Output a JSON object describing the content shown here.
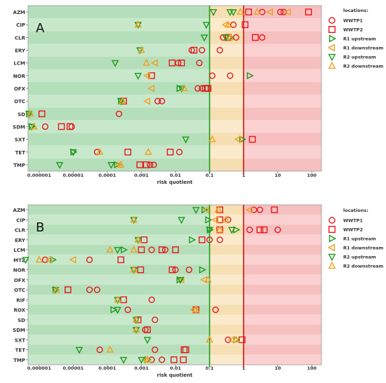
{
  "chart_data": [
    {
      "type": "scatter",
      "panel_label": "A",
      "x_scale": "log",
      "xlim": [
        2.5e-07,
        200
      ],
      "x_ticks": [
        "0.000001",
        "0.00001",
        "0.0001",
        "0.001",
        "0.01",
        "0.1",
        "1",
        "10",
        "100"
      ],
      "xlabel": "risk quotient",
      "ref_lines": [
        0.1,
        1
      ],
      "categories": [
        "AZM",
        "CIP",
        "CLR",
        "ERY",
        "LCM",
        "NOR",
        "OFX",
        "OTC",
        "SD",
        "SDM",
        "SXT",
        "TET",
        "TMP"
      ],
      "series": [
        {
          "name": "WWTP1",
          "points": [
            [
              "AZM",
              3.5
            ],
            [
              "AZM",
              12
            ],
            [
              "AZM",
              15
            ],
            [
              "CIP",
              0.5
            ],
            [
              "CLR",
              0.25
            ],
            [
              "CLR",
              0.6
            ],
            [
              "CLR",
              3.5
            ],
            [
              "ERY",
              0.03
            ],
            [
              "ERY",
              0.06
            ],
            [
              "ERY",
              0.2
            ],
            [
              "LCM",
              0.012
            ],
            [
              "LCM",
              0.05
            ],
            [
              "NOR",
              0.12
            ],
            [
              "NOR",
              0.4
            ],
            [
              "OFX",
              0.045
            ],
            [
              "OFX",
              0.06
            ],
            [
              "OFX",
              0.085
            ],
            [
              "OTC",
              0.003
            ],
            [
              "OTC",
              0.004
            ],
            [
              "SD",
              0.00022
            ],
            [
              "SDM",
              1.5e-06
            ],
            [
              "SDM",
              9e-06
            ],
            [
              "TET",
              5e-05
            ],
            [
              "TET",
              0.013
            ],
            [
              "TMP",
              0.0018
            ],
            [
              "TMP",
              0.0023
            ]
          ]
        },
        {
          "name": "WWTP2",
          "points": [
            [
              "AZM",
              1.4
            ],
            [
              "AZM",
              80
            ],
            [
              "CIP",
              1.1
            ],
            [
              "CLR",
              0.35
            ],
            [
              "CLR",
              2.2
            ],
            [
              "ERY",
              0.035
            ],
            [
              "LCM",
              0.008
            ],
            [
              "LCM",
              0.015
            ],
            [
              "NOR",
              0.002
            ],
            [
              "OFX",
              0.075
            ],
            [
              "OFX",
              0.09
            ],
            [
              "OTC",
              0.0003
            ],
            [
              "SD",
              1.2e-06
            ],
            [
              "SDM",
              4.5e-06
            ],
            [
              "SDM",
              8e-06
            ],
            [
              "SXT",
              1.8
            ],
            [
              "TET",
              0.0004
            ],
            [
              "TET",
              0.007
            ],
            [
              "TMP",
              0.0009
            ],
            [
              "TMP",
              0.0014
            ]
          ]
        },
        {
          "name": "R1 upstream",
          "points": [
            [
              "CLR",
              0.4
            ],
            [
              "NOR",
              1.5
            ],
            [
              "OFX",
              0.013
            ],
            [
              "OTC",
              0.00025
            ],
            [
              "SD",
              5e-07
            ],
            [
              "SDM",
              6e-07
            ],
            [
              "SXT",
              0.9
            ],
            [
              "TET",
              1e-05
            ],
            [
              "TMP",
              0.00019
            ]
          ]
        },
        {
          "name": "R1 downstream",
          "points": [
            [
              "AZM",
              6
            ],
            [
              "AZM",
              20
            ],
            [
              "CIP",
              0.3
            ],
            [
              "LCM",
              0.0025
            ],
            [
              "NOR",
              0.0015
            ],
            [
              "OFX",
              0.002
            ],
            [
              "OTC",
              0.0015
            ],
            [
              "SXT",
              0.7
            ],
            [
              "TMP",
              0.00022
            ]
          ]
        },
        {
          "name": "R2 upstream",
          "points": [
            [
              "AZM",
              0.13
            ],
            [
              "AZM",
              0.4
            ],
            [
              "AZM",
              0.5
            ],
            [
              "CIP",
              0.0008
            ],
            [
              "CIP",
              0.08
            ],
            [
              "CLR",
              0.07
            ],
            [
              "CLR",
              0.3
            ],
            [
              "ERY",
              0.0009
            ],
            [
              "LCM",
              0.00017
            ],
            [
              "NOR",
              0.0008
            ],
            [
              "OFX",
              0.015
            ],
            [
              "OTC",
              0.00025
            ],
            [
              "SD",
              5e-07
            ],
            [
              "SDM",
              6e-07
            ],
            [
              "SXT",
              0.02
            ],
            [
              "TET",
              1e-05
            ],
            [
              "TMP",
              4e-06
            ],
            [
              "TMP",
              0.00013
            ]
          ]
        },
        {
          "name": "R2 downstream",
          "points": [
            [
              "AZM",
              0.8
            ],
            [
              "AZM",
              2.5
            ],
            [
              "CIP",
              0.0008
            ],
            [
              "CIP",
              0.35
            ],
            [
              "CLR",
              0.4
            ],
            [
              "ERY",
              0.001
            ],
            [
              "LCM",
              0.0014
            ],
            [
              "OFX",
              0.018
            ],
            [
              "OTC",
              0.00028
            ],
            [
              "SD",
              5.5e-07
            ],
            [
              "SDM",
              7e-07
            ],
            [
              "SXT",
              0.12
            ],
            [
              "TET",
              0.0016
            ],
            [
              "TET",
              6e-05
            ],
            [
              "TMP",
              0.00025
            ]
          ]
        }
      ]
    },
    {
      "type": "scatter",
      "panel_label": "B",
      "x_scale": "log",
      "xlim": [
        2.5e-07,
        200
      ],
      "x_ticks": [
        "0.000001",
        "0.00001",
        "0.0001",
        "0.001",
        "0.01",
        "0.1",
        "1",
        "10",
        "100"
      ],
      "xlabel": "risk quotient",
      "ref_lines": [
        0.1,
        1
      ],
      "categories": [
        "AZM",
        "CIP",
        "CLR",
        "ERY",
        "LCM",
        "MTZ",
        "NOR",
        "OFX",
        "OTC",
        "RIF",
        "ROX",
        "SD",
        "SDM",
        "SXT",
        "TET",
        "TMP"
      ],
      "series": [
        {
          "name": "WWTP1",
          "points": [
            [
              "AZM",
              2
            ],
            [
              "AZM",
              3
            ],
            [
              "CIP",
              0.35
            ],
            [
              "CLR",
              1.5
            ],
            [
              "CLR",
              10
            ],
            [
              "ERY",
              0.1
            ],
            [
              "ERY",
              0.2
            ],
            [
              "LCM",
              0.002
            ],
            [
              "LCM",
              0.005
            ],
            [
              "MTZ",
              1.5e-06
            ],
            [
              "MTZ",
              3e-05
            ],
            [
              "NOR",
              0.01
            ],
            [
              "NOR",
              0.025
            ],
            [
              "OTC",
              3e-05
            ],
            [
              "OTC",
              5e-05
            ],
            [
              "RIF",
              0.002
            ],
            [
              "ROX",
              0.0004
            ],
            [
              "ROX",
              0.15
            ],
            [
              "SD",
              0.0025
            ],
            [
              "SDM",
              0.0013
            ],
            [
              "SXT",
              0.35
            ],
            [
              "TET",
              6e-05
            ],
            [
              "TET",
              0.0025
            ],
            [
              "TMP",
              0.002
            ],
            [
              "TMP",
              0.004
            ]
          ]
        },
        {
          "name": "WWTP2",
          "points": [
            [
              "AZM",
              0.2
            ],
            [
              "AZM",
              8
            ],
            [
              "CIP",
              0.2
            ],
            [
              "CLR",
              0.2
            ],
            [
              "CLR",
              3
            ],
            [
              "CLR",
              4
            ],
            [
              "ERY",
              0.0012
            ],
            [
              "ERY",
              0.06
            ],
            [
              "LCM",
              0.001
            ],
            [
              "LCM",
              0.004
            ],
            [
              "LCM",
              0.01
            ],
            [
              "MTZ",
              0.00025
            ],
            [
              "NOR",
              0.00095
            ],
            [
              "NOR",
              0.008
            ],
            [
              "OTC",
              7e-06
            ],
            [
              "RIF",
              0.0003
            ],
            [
              "ROX",
              0.04
            ],
            [
              "SD",
              0.0008
            ],
            [
              "SDM",
              0.0015
            ],
            [
              "SXT",
              0.9
            ],
            [
              "TET",
              0.02
            ],
            [
              "TET",
              0.018
            ],
            [
              "TMP",
              0.009
            ],
            [
              "TMP",
              0.017
            ]
          ]
        },
        {
          "name": "R1 upstream",
          "points": [
            [
              "AZM",
              0.07
            ],
            [
              "CIP",
              0.09
            ],
            [
              "CLR",
              0.1
            ],
            [
              "CLR",
              0.6
            ],
            [
              "ERY",
              0.03
            ],
            [
              "LCM",
              0.0003
            ],
            [
              "MTZ",
              2.5e-06
            ],
            [
              "NOR",
              0.06
            ],
            [
              "OFX",
              0.013
            ],
            [
              "OTC",
              3e-06
            ],
            [
              "ROX",
              0.00015
            ],
            [
              "SXT",
              0.6
            ],
            [
              "TMP",
              0.0015
            ]
          ]
        },
        {
          "name": "R1 downstream",
          "points": [
            [
              "AZM",
              0.08
            ],
            [
              "AZM",
              1.5
            ],
            [
              "CIP",
              0.15
            ],
            [
              "MTZ",
              1e-05
            ],
            [
              "MTZ",
              2e-06
            ],
            [
              "OFX",
              0.015
            ],
            [
              "OFX",
              0.07
            ],
            [
              "ROX",
              0.035
            ],
            [
              "SXT",
              0.45
            ],
            [
              "TMP",
              0.0013
            ]
          ]
        },
        {
          "name": "R2 upstream",
          "points": [
            [
              "AZM",
              0.04
            ],
            [
              "CIP",
              0.0006
            ],
            [
              "CIP",
              0.015
            ],
            [
              "CLR",
              0.1
            ],
            [
              "CLR",
              0.45
            ],
            [
              "ERY",
              0.0008
            ],
            [
              "LCM",
              0.0002
            ],
            [
              "MTZ",
              4e-07
            ],
            [
              "NOR",
              0.0006
            ],
            [
              "OFX",
              0.014
            ],
            [
              "OTC",
              3e-06
            ],
            [
              "RIF",
              0.0002
            ],
            [
              "ROX",
              0.0002
            ],
            [
              "SD",
              0.0007
            ],
            [
              "SDM",
              0.0007
            ],
            [
              "SXT",
              0.0015
            ],
            [
              "TET",
              1.5e-05
            ],
            [
              "TMP",
              0.0003
            ],
            [
              "TMP",
              0.001
            ]
          ]
        },
        {
          "name": "R2 downstream",
          "points": [
            [
              "AZM",
              0.18
            ],
            [
              "CIP",
              0.0006
            ],
            [
              "CIP",
              0.3
            ],
            [
              "CLR",
              0.2
            ],
            [
              "ERY",
              0.0008
            ],
            [
              "LCM",
              0.00012
            ],
            [
              "LCM",
              0.0006
            ],
            [
              "MTZ",
              1e-06
            ],
            [
              "NOR",
              0.0006
            ],
            [
              "OFX",
              0.09
            ],
            [
              "OTC",
              3.2e-06
            ],
            [
              "RIF",
              0.0002
            ],
            [
              "ROX",
              0.04
            ],
            [
              "SD",
              0.0007
            ],
            [
              "SDM",
              0.0007
            ],
            [
              "SXT",
              0.6
            ],
            [
              "SXT",
              0.1
            ],
            [
              "TET",
              0.00012
            ],
            [
              "TMP",
              0.0015
            ]
          ]
        }
      ]
    }
  ],
  "legend": {
    "title": "locations:",
    "items": [
      {
        "name": "WWTP1",
        "shape": "circle",
        "color": "#e8161b"
      },
      {
        "name": "WWTP2",
        "shape": "square",
        "color": "#e8161b"
      },
      {
        "name": "R1 upstream",
        "shape": "tri-right",
        "color": "#1e9a1e"
      },
      {
        "name": "R1 downstream",
        "shape": "tri-left",
        "color": "#f0a020"
      },
      {
        "name": "R2 upstream",
        "shape": "tri-down",
        "color": "#1e9a1e"
      },
      {
        "name": "R2 downstream",
        "shape": "tri-up",
        "color": "#f0a020"
      }
    ]
  },
  "colors": {
    "zone_low_a": "#c8e8cc",
    "zone_low_b": "#b5dfba",
    "zone_mid_a": "#fbebcc",
    "zone_mid_b": "#f6dfb3",
    "zone_high_a": "#fbd0d0",
    "zone_high_b": "#f6c0c0",
    "line_low": "#1e9a1e",
    "line_high": "#d01010"
  }
}
